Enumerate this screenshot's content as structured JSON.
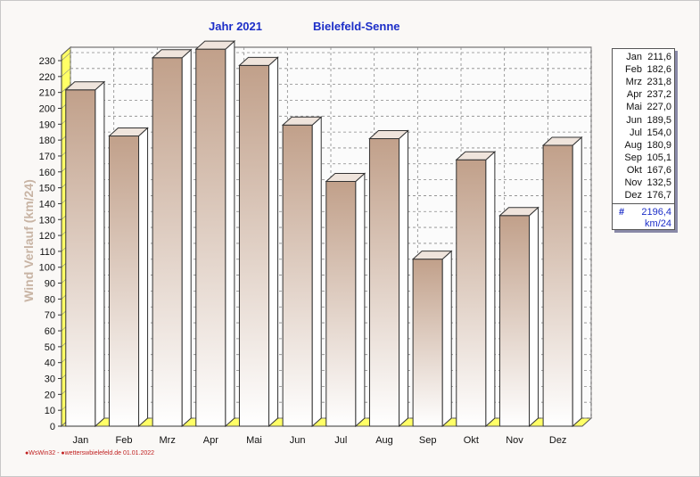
{
  "header": {
    "year_label": "Jahr  2021",
    "station": "Bielefeld-Senne"
  },
  "footer": {
    "text": "●WsWin32 - ●wetterswbielefeld.de  01.01.2022"
  },
  "legend": {
    "total_symbol": "#",
    "total": "2196,4",
    "unit": "km/24",
    "items": [
      {
        "month": "Jan",
        "value": "211,6"
      },
      {
        "month": "Feb",
        "value": "182,6"
      },
      {
        "month": "Mrz",
        "value": "231,8"
      },
      {
        "month": "Apr",
        "value": "237,2"
      },
      {
        "month": "Mai",
        "value": "227,0"
      },
      {
        "month": "Jun",
        "value": "189,5"
      },
      {
        "month": "Jul",
        "value": "154,0"
      },
      {
        "month": "Aug",
        "value": "180,9"
      },
      {
        "month": "Sep",
        "value": "105,1"
      },
      {
        "month": "Okt",
        "value": "167,6"
      },
      {
        "month": "Nov",
        "value": "132,5"
      },
      {
        "month": "Dez",
        "value": "176,7"
      }
    ]
  },
  "colors": {
    "bar_top": "#c1a08a",
    "bar_bottom": "#ffffff",
    "title": "#1c2ec8",
    "axis_label": "#c8b4a4",
    "floor": "#ffff66"
  },
  "chart_data": {
    "type": "bar",
    "categories": [
      "Jan",
      "Feb",
      "Mrz",
      "Apr",
      "Mai",
      "Jun",
      "Jul",
      "Aug",
      "Sep",
      "Okt",
      "Nov",
      "Dez"
    ],
    "values": [
      211.6,
      182.6,
      231.8,
      237.2,
      227.0,
      189.5,
      154.0,
      180.9,
      105.1,
      167.6,
      132.5,
      176.7
    ],
    "title": "Jahr  2021    Bielefeld-Senne",
    "xlabel": "",
    "ylabel": "Wind Verlauf  (km/24)",
    "ylim": [
      0,
      230
    ],
    "yticks": [
      0,
      10,
      20,
      30,
      40,
      50,
      60,
      70,
      80,
      90,
      100,
      110,
      120,
      130,
      140,
      150,
      160,
      170,
      180,
      190,
      200,
      210,
      220,
      230
    ],
    "grid": true,
    "legend_position": "right",
    "style": "3d"
  }
}
